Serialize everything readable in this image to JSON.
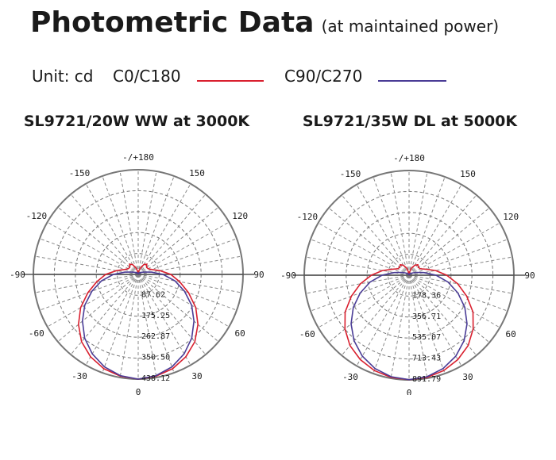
{
  "header": {
    "title": "Photometric Data",
    "subtitle": "(at maintained power)"
  },
  "legend": {
    "unit": "Unit: cd",
    "series1": "C0/C180",
    "series2": "C90/C270",
    "series1_color": "#d9202f",
    "series2_color": "#4a3c96"
  },
  "chart_data": [
    {
      "type": "polar",
      "title": "SL9721/20W WW at 3000K",
      "angle_labels": [
        "-/+180",
        "150",
        "120",
        "90",
        "60",
        "30",
        "0",
        "-30",
        "-60",
        "-90",
        "-120",
        "-150"
      ],
      "radial_ticks": [
        "87.62",
        "175.25",
        "262.87",
        "350.50",
        "438.12"
      ],
      "rmax": 438.12,
      "series": [
        {
          "name": "C0/C180",
          "color": "#d9202f",
          "points": [
            [
              0,
              438
            ],
            [
              10,
              432
            ],
            [
              20,
              420
            ],
            [
              30,
              398
            ],
            [
              40,
              368
            ],
            [
              50,
              326
            ],
            [
              60,
              278
            ],
            [
              70,
              224
            ],
            [
              80,
              176
            ],
            [
              90,
              136
            ],
            [
              100,
              92
            ],
            [
              110,
              60
            ],
            [
              120,
              48
            ],
            [
              130,
              46
            ],
            [
              140,
              56
            ],
            [
              150,
              48
            ],
            [
              160,
              30
            ],
            [
              170,
              14
            ],
            [
              180,
              0
            ],
            [
              190,
              14
            ],
            [
              200,
              30
            ],
            [
              210,
              48
            ],
            [
              220,
              56
            ],
            [
              230,
              46
            ],
            [
              240,
              48
            ],
            [
              250,
              60
            ],
            [
              260,
              92
            ],
            [
              270,
              136
            ],
            [
              280,
              176
            ],
            [
              290,
              224
            ],
            [
              300,
              278
            ],
            [
              310,
              326
            ],
            [
              320,
              368
            ],
            [
              330,
              398
            ],
            [
              340,
              420
            ],
            [
              350,
              432
            ]
          ]
        },
        {
          "name": "C90/C270",
          "color": "#4a3c96",
          "points": [
            [
              0,
              438
            ],
            [
              10,
              430
            ],
            [
              20,
              412
            ],
            [
              30,
              384
            ],
            [
              40,
              348
            ],
            [
              50,
              304
            ],
            [
              60,
              258
            ],
            [
              70,
              206
            ],
            [
              80,
              156
            ],
            [
              90,
              104
            ],
            [
              100,
              56
            ],
            [
              110,
              28
            ],
            [
              120,
              18
            ],
            [
              130,
              12
            ],
            [
              140,
              8
            ],
            [
              150,
              8
            ],
            [
              160,
              6
            ],
            [
              170,
              4
            ],
            [
              180,
              0
            ],
            [
              190,
              4
            ],
            [
              200,
              6
            ],
            [
              210,
              8
            ],
            [
              220,
              8
            ],
            [
              230,
              12
            ],
            [
              240,
              18
            ],
            [
              250,
              28
            ],
            [
              260,
              56
            ],
            [
              270,
              104
            ],
            [
              280,
              156
            ],
            [
              290,
              206
            ],
            [
              300,
              258
            ],
            [
              310,
              304
            ],
            [
              320,
              348
            ],
            [
              330,
              384
            ],
            [
              340,
              412
            ],
            [
              350,
              430
            ]
          ]
        }
      ]
    },
    {
      "type": "polar",
      "title": "SL9721/35W DL at 5000K",
      "angle_labels": [
        "-/+180",
        "150",
        "120",
        "90",
        "60",
        "30",
        "0",
        "-30",
        "-60",
        "-90",
        "-120",
        "-150"
      ],
      "radial_ticks": [
        "178.36",
        "356.71",
        "535.07",
        "713.43",
        "891.79"
      ],
      "rmax": 891.79,
      "series": [
        {
          "name": "C0/C180",
          "color": "#d9202f",
          "points": [
            [
              0,
              890
            ],
            [
              10,
              884
            ],
            [
              20,
              864
            ],
            [
              30,
              830
            ],
            [
              40,
              782
            ],
            [
              50,
              712
            ],
            [
              60,
              628
            ],
            [
              70,
              522
            ],
            [
              80,
              420
            ],
            [
              90,
              320
            ],
            [
              100,
              230
            ],
            [
              110,
              150
            ],
            [
              120,
              110
            ],
            [
              130,
              104
            ],
            [
              140,
              116
            ],
            [
              150,
              98
            ],
            [
              160,
              66
            ],
            [
              170,
              30
            ],
            [
              180,
              0
            ],
            [
              190,
              30
            ],
            [
              200,
              66
            ],
            [
              210,
              98
            ],
            [
              220,
              116
            ],
            [
              230,
              104
            ],
            [
              240,
              110
            ],
            [
              250,
              150
            ],
            [
              260,
              230
            ],
            [
              270,
              320
            ],
            [
              280,
              420
            ],
            [
              290,
              522
            ],
            [
              300,
              628
            ],
            [
              310,
              712
            ],
            [
              320,
              782
            ],
            [
              330,
              830
            ],
            [
              340,
              864
            ],
            [
              350,
              884
            ]
          ]
        },
        {
          "name": "C90/C270",
          "color": "#4a3c96",
          "points": [
            [
              0,
              890
            ],
            [
              10,
              878
            ],
            [
              20,
              846
            ],
            [
              30,
              796
            ],
            [
              40,
              728
            ],
            [
              50,
              644
            ],
            [
              60,
              548
            ],
            [
              70,
              442
            ],
            [
              80,
              336
            ],
            [
              90,
              230
            ],
            [
              100,
              130
            ],
            [
              110,
              70
            ],
            [
              120,
              40
            ],
            [
              130,
              24
            ],
            [
              140,
              18
            ],
            [
              150,
              14
            ],
            [
              160,
              10
            ],
            [
              170,
              6
            ],
            [
              180,
              0
            ],
            [
              190,
              6
            ],
            [
              200,
              10
            ],
            [
              210,
              14
            ],
            [
              220,
              18
            ],
            [
              230,
              24
            ],
            [
              240,
              40
            ],
            [
              250,
              70
            ],
            [
              260,
              130
            ],
            [
              270,
              230
            ],
            [
              280,
              336
            ],
            [
              290,
              442
            ],
            [
              300,
              548
            ],
            [
              310,
              644
            ],
            [
              320,
              728
            ],
            [
              330,
              796
            ],
            [
              340,
              846
            ],
            [
              350,
              878
            ]
          ]
        }
      ]
    }
  ]
}
